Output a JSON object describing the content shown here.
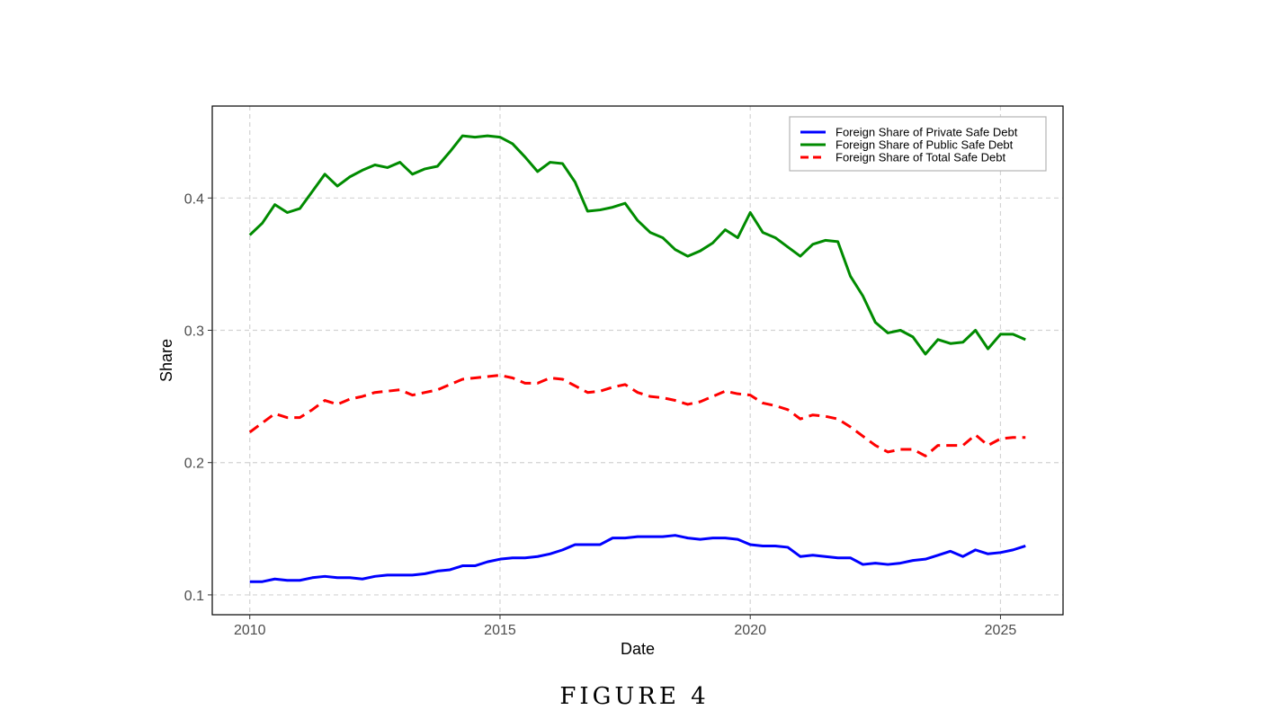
{
  "caption": "FIGURE 4",
  "chart_data": {
    "type": "line",
    "xlabel": "Date",
    "ylabel": "Share",
    "xlim": [
      2009.25,
      2026.25
    ],
    "ylim": [
      0.085,
      0.4695
    ],
    "x_ticks": [
      2010,
      2015,
      2020,
      2025
    ],
    "x_tick_labels": [
      "2010",
      "2015",
      "2020",
      "2025"
    ],
    "y_ticks": [
      0.1,
      0.2,
      0.3,
      0.4
    ],
    "y_tick_labels": [
      "0.1",
      "0.2",
      "0.3",
      "0.4"
    ],
    "grid": true,
    "legend_position": "top-right",
    "x": [
      2010.0,
      2010.25,
      2010.5,
      2010.75,
      2011.0,
      2011.25,
      2011.5,
      2011.75,
      2012.0,
      2012.25,
      2012.5,
      2012.75,
      2013.0,
      2013.25,
      2013.5,
      2013.75,
      2014.0,
      2014.25,
      2014.5,
      2014.75,
      2015.0,
      2015.25,
      2015.5,
      2015.75,
      2016.0,
      2016.25,
      2016.5,
      2016.75,
      2017.0,
      2017.25,
      2017.5,
      2017.75,
      2018.0,
      2018.25,
      2018.5,
      2018.75,
      2019.0,
      2019.25,
      2019.5,
      2019.75,
      2020.0,
      2020.25,
      2020.5,
      2020.75,
      2021.0,
      2021.25,
      2021.5,
      2021.75,
      2022.0,
      2022.25,
      2022.5,
      2022.75,
      2023.0,
      2023.25,
      2023.5,
      2023.75,
      2024.0,
      2024.25,
      2024.5,
      2024.75,
      2025.0,
      2025.25,
      2025.5
    ],
    "series": [
      {
        "name": "Foreign Share of Private Safe Debt",
        "color": "#0000ff",
        "dash": "solid",
        "values": [
          0.11,
          0.11,
          0.112,
          0.111,
          0.111,
          0.113,
          0.114,
          0.113,
          0.113,
          0.112,
          0.114,
          0.115,
          0.115,
          0.115,
          0.116,
          0.118,
          0.119,
          0.122,
          0.122,
          0.125,
          0.127,
          0.128,
          0.128,
          0.129,
          0.131,
          0.134,
          0.138,
          0.138,
          0.138,
          0.143,
          0.143,
          0.144,
          0.144,
          0.144,
          0.145,
          0.143,
          0.142,
          0.143,
          0.143,
          0.142,
          0.138,
          0.137,
          0.137,
          0.136,
          0.129,
          0.13,
          0.129,
          0.128,
          0.128,
          0.123,
          0.124,
          0.123,
          0.124,
          0.126,
          0.127,
          0.13,
          0.133,
          0.129,
          0.134,
          0.131,
          0.132,
          0.134,
          0.137
        ]
      },
      {
        "name": "Foreign Share of Public Safe Debt",
        "color": "#008b00",
        "dash": "solid",
        "values": [
          0.372,
          0.381,
          0.395,
          0.389,
          0.392,
          0.405,
          0.418,
          0.409,
          0.416,
          0.421,
          0.425,
          0.423,
          0.427,
          0.418,
          0.422,
          0.424,
          0.435,
          0.447,
          0.446,
          0.447,
          0.446,
          0.441,
          0.431,
          0.42,
          0.427,
          0.426,
          0.412,
          0.39,
          0.391,
          0.393,
          0.396,
          0.383,
          0.374,
          0.37,
          0.361,
          0.356,
          0.36,
          0.366,
          0.376,
          0.37,
          0.389,
          0.374,
          0.37,
          0.363,
          0.356,
          0.365,
          0.368,
          0.367,
          0.341,
          0.326,
          0.306,
          0.298,
          0.3,
          0.295,
          0.282,
          0.293,
          0.29,
          0.291,
          0.3,
          0.286,
          0.297,
          0.297,
          0.293
        ]
      },
      {
        "name": "Foreign Share of Total Safe Debt",
        "color": "#ff0000",
        "dash": "dashed",
        "values": [
          0.223,
          0.23,
          0.237,
          0.234,
          0.234,
          0.24,
          0.247,
          0.244,
          0.248,
          0.25,
          0.253,
          0.254,
          0.255,
          0.251,
          0.253,
          0.255,
          0.259,
          0.263,
          0.264,
          0.265,
          0.266,
          0.264,
          0.26,
          0.26,
          0.264,
          0.263,
          0.258,
          0.253,
          0.254,
          0.257,
          0.259,
          0.253,
          0.25,
          0.249,
          0.247,
          0.244,
          0.246,
          0.25,
          0.254,
          0.252,
          0.251,
          0.245,
          0.243,
          0.24,
          0.233,
          0.236,
          0.235,
          0.233,
          0.227,
          0.22,
          0.213,
          0.208,
          0.21,
          0.21,
          0.205,
          0.213,
          0.213,
          0.213,
          0.221,
          0.213,
          0.218,
          0.219,
          0.219
        ]
      }
    ]
  }
}
